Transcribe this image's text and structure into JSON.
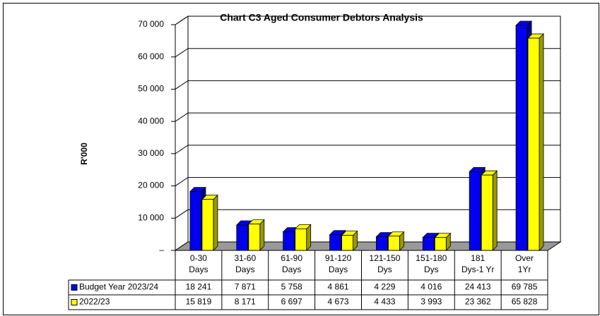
{
  "chart_data": {
    "type": "bar3d",
    "title": "Chart C3 Aged Consumer Debtors Analysis",
    "ylabel": "R'000",
    "categories": [
      [
        "0-30",
        "Days"
      ],
      [
        "31-60",
        "Days"
      ],
      [
        "61-90",
        "Days"
      ],
      [
        "91-120",
        "Days"
      ],
      [
        "121-150",
        "Dys"
      ],
      [
        "151-180",
        "Dys"
      ],
      [
        "181",
        "Dys-1 Yr"
      ],
      [
        "Over",
        "1Yr"
      ]
    ],
    "series": [
      {
        "name": "Budget Year 2023/24",
        "color": "#0000ee",
        "values": [
          18241,
          7871,
          5758,
          4861,
          4229,
          4016,
          24413,
          69785
        ],
        "value_labels": [
          "18 241",
          "7 871",
          "5 758",
          "4 861",
          "4 229",
          "4 016",
          "24 413",
          "69 785"
        ]
      },
      {
        "name": "2022/23",
        "color": "#ffff00",
        "values": [
          15819,
          8171,
          6697,
          4673,
          4433,
          3993,
          23362,
          65828
        ],
        "value_labels": [
          "15 819",
          "8 171",
          "6 697",
          "4 673",
          "4 433",
          "3 993",
          "23 362",
          "65 828"
        ]
      }
    ],
    "ylim": [
      0,
      70000
    ],
    "yticks": [
      {
        "value": 0,
        "label": "–"
      },
      {
        "value": 10000,
        "label": "10 000"
      },
      {
        "value": 20000,
        "label": "20 000"
      },
      {
        "value": 30000,
        "label": "30 000"
      },
      {
        "value": 40000,
        "label": "40 000"
      },
      {
        "value": 50000,
        "label": "50 000"
      },
      {
        "value": 60000,
        "label": "60 000"
      },
      {
        "value": 70000,
        "label": "70 000"
      }
    ],
    "grid": true
  }
}
